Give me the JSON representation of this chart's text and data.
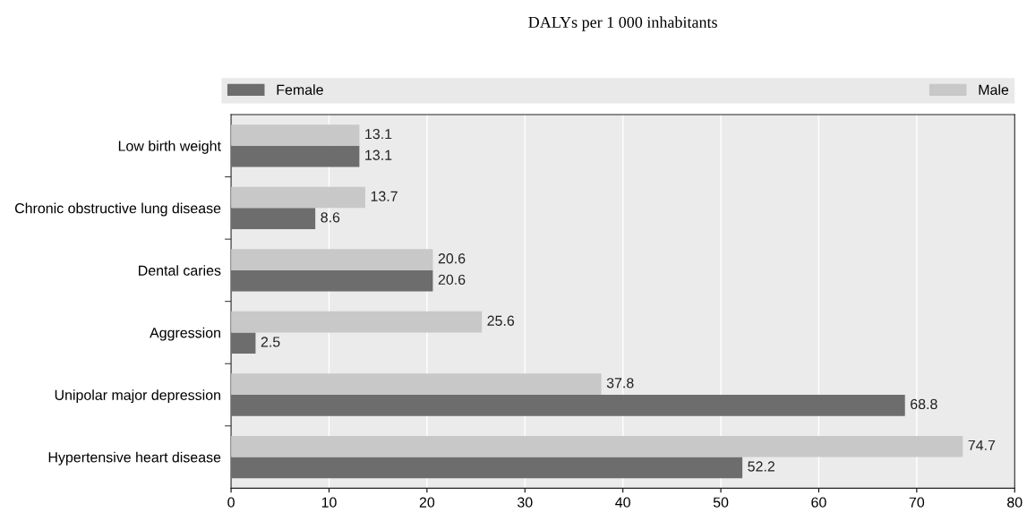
{
  "chart_data": {
    "type": "bar",
    "orientation": "horizontal",
    "title": "DALYs per 1 000 inhabitants",
    "categories": [
      "Low birth weight",
      "Chronic obstructive lung disease",
      "Dental caries",
      "Aggression",
      "Unipolar major depression",
      "Hypertensive heart disease"
    ],
    "series": [
      {
        "name": "Female",
        "color": "#6d6d6d",
        "values": [
          13.1,
          8.6,
          20.6,
          2.5,
          68.8,
          52.2
        ]
      },
      {
        "name": "Male",
        "color": "#c8c8c8",
        "values": [
          13.1,
          13.7,
          20.6,
          25.6,
          37.8,
          74.7
        ]
      }
    ],
    "xlim": [
      0,
      80
    ],
    "xticks": [
      0,
      10,
      20,
      30,
      40,
      50,
      60,
      70,
      80
    ],
    "grid": "x",
    "legend": "top",
    "data_labels": true
  }
}
